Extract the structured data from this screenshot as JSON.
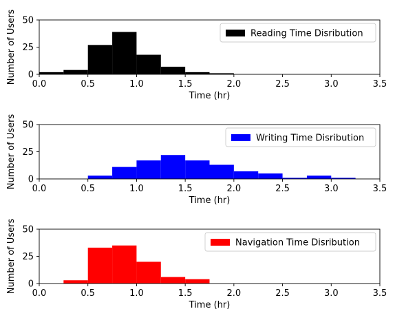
{
  "chart_data": [
    {
      "type": "bar",
      "legend": [
        "Reading Time Disribution"
      ],
      "legend_position": "top-right",
      "xlabel": "Time (hr)",
      "ylabel": "Number of Users",
      "xlim": [
        0,
        3.5
      ],
      "ylim": [
        0,
        50
      ],
      "xticks": [
        "0.0",
        "0.5",
        "1.0",
        "1.5",
        "2.0",
        "2.5",
        "3.0",
        "3.5"
      ],
      "yticks": [
        "0",
        "25",
        "50"
      ],
      "color": "#000000",
      "bins": [
        {
          "x0": 0.0,
          "x1": 0.25,
          "count": 2
        },
        {
          "x0": 0.25,
          "x1": 0.5,
          "count": 4
        },
        {
          "x0": 0.5,
          "x1": 0.75,
          "count": 27
        },
        {
          "x0": 0.75,
          "x1": 1.0,
          "count": 39
        },
        {
          "x0": 1.0,
          "x1": 1.25,
          "count": 18
        },
        {
          "x0": 1.25,
          "x1": 1.5,
          "count": 7
        },
        {
          "x0": 1.5,
          "x1": 1.75,
          "count": 2
        },
        {
          "x0": 1.75,
          "x1": 2.0,
          "count": 1
        }
      ]
    },
    {
      "type": "bar",
      "legend": [
        "Writing Time Disribution"
      ],
      "legend_position": "top-right",
      "xlabel": "Time (hr)",
      "ylabel": "Number of Users",
      "xlim": [
        0,
        3.5
      ],
      "ylim": [
        0,
        50
      ],
      "xticks": [
        "0.0",
        "0.5",
        "1.0",
        "1.5",
        "2.0",
        "2.5",
        "3.0",
        "3.5"
      ],
      "yticks": [
        "0",
        "25",
        "50"
      ],
      "color": "#0000ff",
      "bins": [
        {
          "x0": 0.5,
          "x1": 0.75,
          "count": 3
        },
        {
          "x0": 0.75,
          "x1": 1.0,
          "count": 11
        },
        {
          "x0": 1.0,
          "x1": 1.25,
          "count": 17
        },
        {
          "x0": 1.25,
          "x1": 1.5,
          "count": 22
        },
        {
          "x0": 1.5,
          "x1": 1.75,
          "count": 17
        },
        {
          "x0": 1.75,
          "x1": 2.0,
          "count": 13
        },
        {
          "x0": 2.0,
          "x1": 2.25,
          "count": 7
        },
        {
          "x0": 2.25,
          "x1": 2.5,
          "count": 5
        },
        {
          "x0": 2.5,
          "x1": 2.75,
          "count": 1
        },
        {
          "x0": 2.75,
          "x1": 3.0,
          "count": 3
        },
        {
          "x0": 3.0,
          "x1": 3.25,
          "count": 1
        }
      ]
    },
    {
      "type": "bar",
      "legend": [
        "Navigation Time Disribution"
      ],
      "legend_position": "top-right",
      "xlabel": "Time (hr)",
      "ylabel": "Number of Users",
      "xlim": [
        0,
        3.5
      ],
      "ylim": [
        0,
        50
      ],
      "xticks": [
        "0.0",
        "0.5",
        "1.0",
        "1.5",
        "2.0",
        "2.5",
        "3.0",
        "3.5"
      ],
      "yticks": [
        "0",
        "25",
        "50"
      ],
      "color": "#ff0000",
      "bins": [
        {
          "x0": 0.25,
          "x1": 0.5,
          "count": 3
        },
        {
          "x0": 0.5,
          "x1": 0.75,
          "count": 33
        },
        {
          "x0": 0.75,
          "x1": 1.0,
          "count": 35
        },
        {
          "x0": 1.0,
          "x1": 1.25,
          "count": 20
        },
        {
          "x0": 1.25,
          "x1": 1.5,
          "count": 6
        },
        {
          "x0": 1.5,
          "x1": 1.75,
          "count": 4
        }
      ]
    }
  ]
}
